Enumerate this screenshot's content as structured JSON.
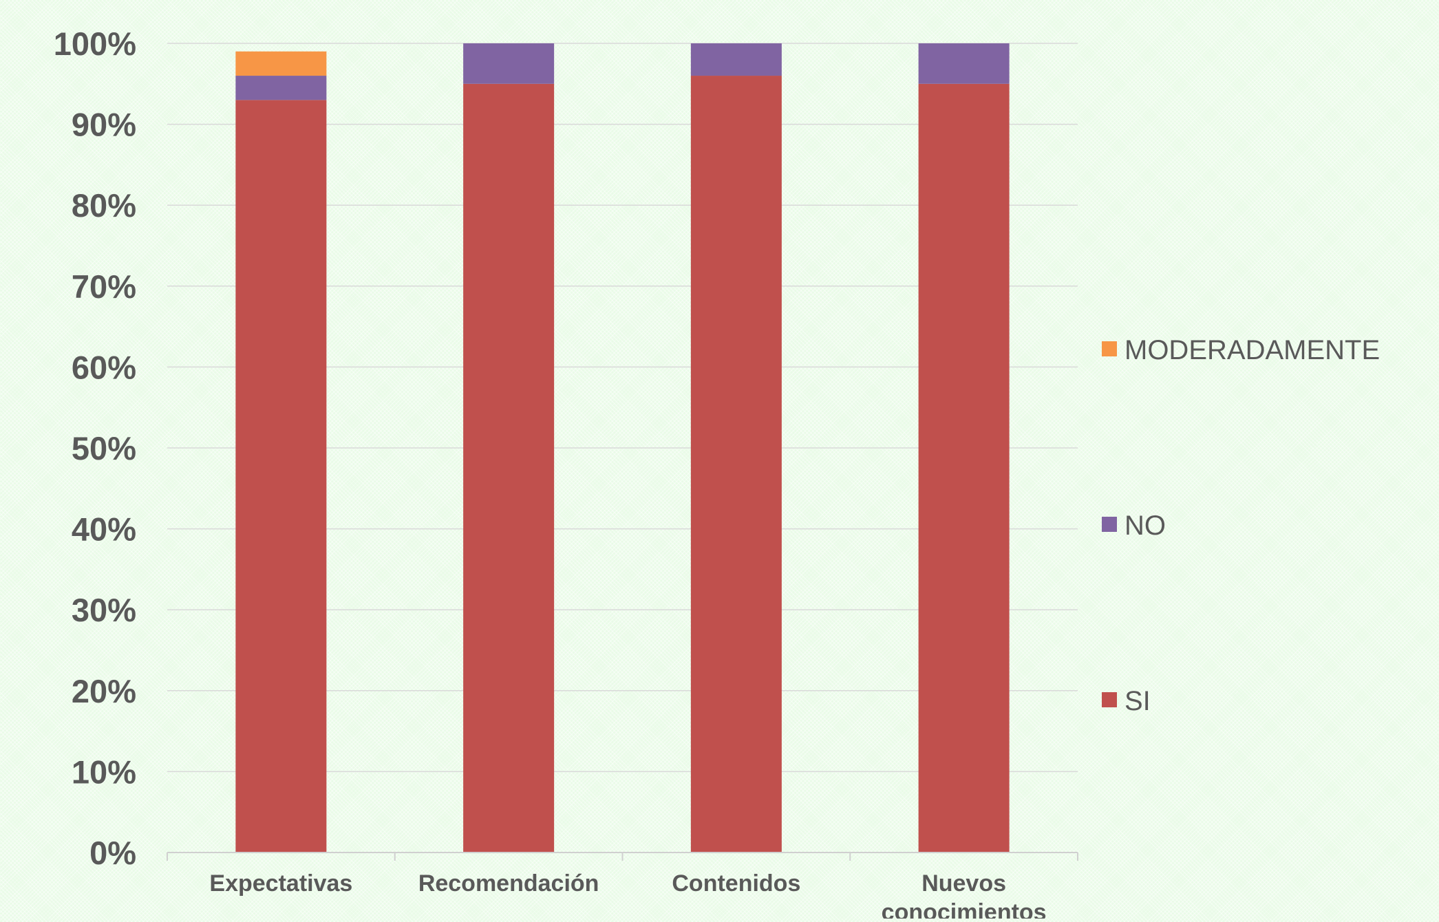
{
  "chart_data": {
    "type": "bar",
    "stacked": true,
    "categories": [
      "Expectativas",
      "Recomendación",
      "Contenidos",
      "Nuevos conocimientos"
    ],
    "series": [
      {
        "name": "SI",
        "values": [
          93,
          95,
          96,
          95
        ],
        "color": "#c0504d"
      },
      {
        "name": "NO",
        "values": [
          3,
          5,
          4,
          5
        ],
        "color": "#8064a2"
      },
      {
        "name": "MODERADAMENTE",
        "values": [
          3,
          0,
          0,
          0
        ],
        "color": "#f79646"
      }
    ],
    "title": "",
    "xlabel": "",
    "ylabel": "",
    "ylim": [
      0,
      100
    ],
    "y_ticks": [
      "0%",
      "10%",
      "20%",
      "30%",
      "40%",
      "50%",
      "60%",
      "70%",
      "80%",
      "90%",
      "100%"
    ],
    "grid": true,
    "legend_position": "right",
    "legend_order": [
      "MODERADAMENTE",
      "NO",
      "SI"
    ],
    "colors": {
      "background": "#e9fbe7",
      "gridline": "#d9d9d9",
      "axis": "#d0d0d0",
      "text": "#595959"
    }
  }
}
